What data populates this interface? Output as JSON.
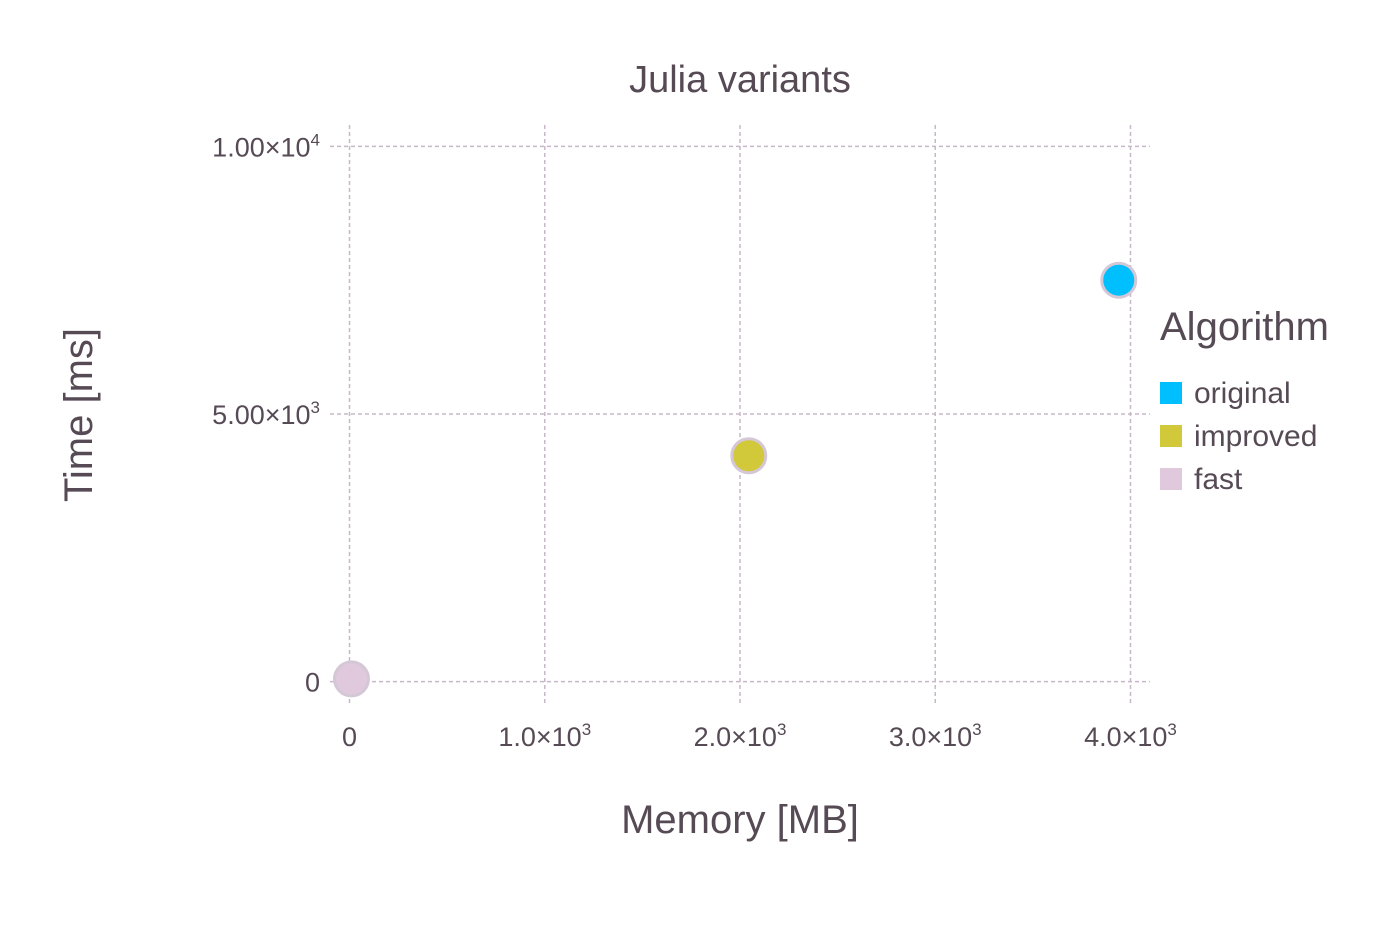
{
  "chart_data": {
    "type": "scatter",
    "title": "Julia variants",
    "xlabel": "Memory [MB]",
    "ylabel": "Time [ms]",
    "xlim": [
      -100,
      4100
    ],
    "ylim": [
      -400,
      10400
    ],
    "grid": true,
    "x_ticks": [
      {
        "value": 0,
        "base": "0",
        "exp": ""
      },
      {
        "value": 1000,
        "base": "1.0×10",
        "exp": "3"
      },
      {
        "value": 2000,
        "base": "2.0×10",
        "exp": "3"
      },
      {
        "value": 3000,
        "base": "3.0×10",
        "exp": "3"
      },
      {
        "value": 4000,
        "base": "4.0×10",
        "exp": "3"
      }
    ],
    "y_ticks": [
      {
        "value": 0,
        "base": "0",
        "exp": ""
      },
      {
        "value": 5000,
        "base": "5.00×10",
        "exp": "3"
      },
      {
        "value": 10000,
        "base": "1.00×10",
        "exp": "4"
      }
    ],
    "legend": {
      "title": "Algorithm",
      "placement": "right"
    },
    "series": [
      {
        "name": "original",
        "color": "#00bfff",
        "points": [
          {
            "x": 3940,
            "y": 7500
          }
        ]
      },
      {
        "name": "improved",
        "color": "#d1c83a",
        "points": [
          {
            "x": 2045,
            "y": 4220
          }
        ]
      },
      {
        "name": "fast",
        "color": "#e0c9dc",
        "points": [
          {
            "x": 10,
            "y": 50
          }
        ]
      }
    ]
  }
}
